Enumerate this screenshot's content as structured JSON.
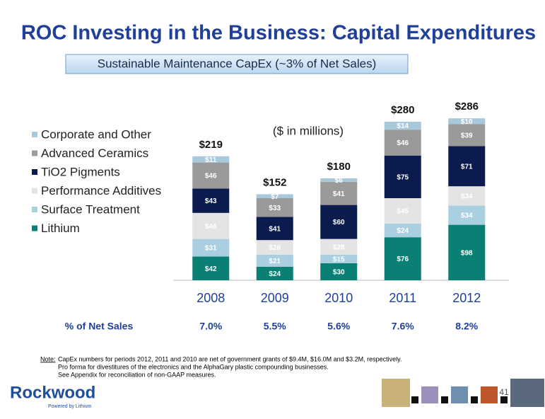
{
  "slide_title": "ROC Investing in the Business: Capital Expenditures",
  "subtitle": "Sustainable Maintenance CapEx (~3% of Net Sales)",
  "chart_data": {
    "type": "stacked_bar",
    "annotation": "($ in millions)",
    "categories": [
      "2008",
      "2009",
      "2010",
      "2011",
      "2012"
    ],
    "legend": "left",
    "series": [
      {
        "name": "Lithium",
        "color": "#0a7f73",
        "values": [
          42,
          24,
          30,
          76,
          98
        ],
        "value_labels": [
          "$42",
          "$24",
          "$30",
          "$76",
          "$98"
        ]
      },
      {
        "name": "Surface Treatment",
        "color": "#a9cfe0",
        "values": [
          31,
          21,
          15,
          24,
          34
        ],
        "value_labels": [
          "$31",
          "$21",
          "$15",
          "$24",
          "$34"
        ]
      },
      {
        "name": "Performance Additives",
        "color": "#e4e4e4",
        "values": [
          46,
          26,
          28,
          45,
          34
        ],
        "value_labels": [
          "$46",
          "$26",
          "$28",
          "$45",
          "$34"
        ]
      },
      {
        "name": "TiO2 Pigments",
        "color": "#0b1b4d",
        "values": [
          43,
          41,
          60,
          75,
          71
        ],
        "value_labels": [
          "$43",
          "$41",
          "$60",
          "$75",
          "$71"
        ]
      },
      {
        "name": "Advanced Ceramics",
        "color": "#9a9a9a",
        "values": [
          46,
          33,
          41,
          46,
          39
        ],
        "value_labels": [
          "$46",
          "$33",
          "$41",
          "$46",
          "$39"
        ]
      },
      {
        "name": "Corporate and Other",
        "color": "#a8c8dc",
        "values": [
          11,
          7,
          6,
          14,
          10
        ],
        "value_labels": [
          "$11",
          "$7",
          "$6",
          "$14",
          "$10"
        ]
      }
    ],
    "totals": {
      "values": [
        219,
        152,
        180,
        280,
        286
      ],
      "value_labels": [
        "$219",
        "$152",
        "$180",
        "$280",
        "$286"
      ]
    },
    "net_sales": {
      "label": "% of Net Sales",
      "values": [
        7.0,
        5.5,
        5.6,
        7.6,
        8.2
      ],
      "value_labels": [
        "7.0%",
        "5.5%",
        "5.6%",
        "7.6%",
        "8.2%"
      ]
    }
  },
  "note": {
    "label": "Note:",
    "lines": [
      "CapEx numbers  for periods 2012, 2011 and 2010 are net of government grants of $9.4M, $16.0M and $3.2M, respectively.",
      "Pro forma for divestitures of the electronics and the AlphaGary plastic compounding businesses.",
      "See Appendix for reconciliation of non-GAAP measures."
    ]
  },
  "page_number": "41",
  "logo": {
    "name": "Rockwood",
    "tagline": "Powered by Lithium"
  }
}
